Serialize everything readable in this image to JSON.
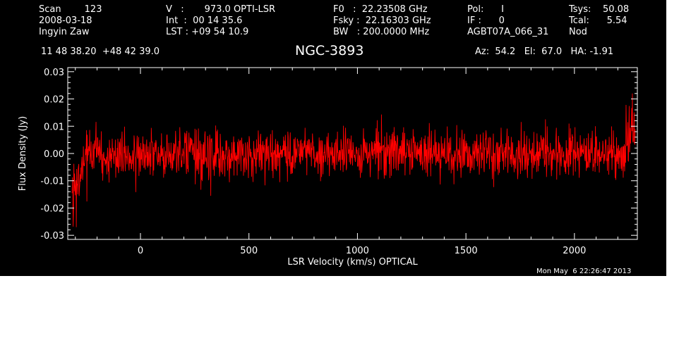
{
  "header": {
    "col1": [
      "Scan        123",
      "2008-03-18",
      "Ingyin Zaw"
    ],
    "col2": [
      "V   :       973.0 OPTI-LSR",
      "Int  :  00 14 35.6",
      "LST : +09 54 10.9"
    ],
    "col3": [
      "F0   :  22.23508 GHz",
      "Fsky :  22.16303 GHz",
      "BW   : 200.0000 MHz"
    ],
    "col4": [
      "Pol:      I",
      "IF :      0",
      "AGBT07A_066_31"
    ],
    "col5": [
      "Tsys:    50.08",
      "Tcal:      5.54",
      "Nod"
    ],
    "coords": "11 48 38.20  +48 42 39.0",
    "source": "NGC-3893",
    "azel": "Az:  54.2   El:  67.0   HA: -1.91",
    "timestamp": "Mon May  6 22:26:47 2013"
  },
  "chart_data": {
    "type": "line",
    "xlabel": "LSR Velocity (km/s) OPTICAL",
    "ylabel": "Flux Density (Jy)",
    "xlim": [
      -335,
      2290
    ],
    "ylim": [
      -0.0315,
      0.0315
    ],
    "xticks": [
      0,
      500,
      1000,
      1500,
      2000
    ],
    "yticks": [
      -0.03,
      -0.02,
      -0.01,
      0.0,
      0.01,
      0.02,
      0.03
    ],
    "ytick_labels": [
      "-0.03",
      "-0.02",
      "-0.01",
      "0.00",
      "0.01",
      "0.02",
      "0.03"
    ],
    "line_color": "#ff0000",
    "background": "#000000",
    "noise": {
      "baseline": 0.0,
      "rms": 0.0045,
      "x_start": -315,
      "x_end": 2280,
      "edge_low": {
        "x": -305,
        "value": -0.027
      },
      "edge_high": {
        "x": 2275,
        "value": 0.022
      }
    }
  }
}
